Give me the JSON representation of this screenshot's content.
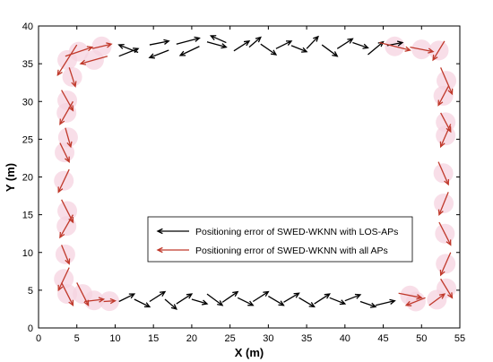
{
  "chart_data": {
    "type": "quiver",
    "xlabel": "X (m)",
    "ylabel": "Y (m)",
    "xlim": [
      0,
      55
    ],
    "ylim": [
      0,
      40
    ],
    "xticks": [
      "0",
      "5",
      "10",
      "15",
      "20",
      "25",
      "30",
      "35",
      "40",
      "45",
      "50",
      "55"
    ],
    "yticks": [
      "0",
      "5",
      "10",
      "15",
      "20",
      "25",
      "30",
      "35",
      "40"
    ],
    "grid": false,
    "legend": {
      "placement": "inside-lower-center",
      "entries": [
        "Positioning error of SWED-WKNN with LOS-APs",
        "Positioning error of SWED-WKNN with all APs"
      ]
    },
    "series": [
      {
        "name": "Positioning error of SWED-WKNN with LOS-APs",
        "color": "#000000",
        "arrows": [
          [
            [
              10.5,
              36.0
            ],
            [
              13.0,
              37.0
            ]
          ],
          [
            [
              13.0,
              36.5
            ],
            [
              10.5,
              37.5
            ]
          ],
          [
            [
              14.5,
              37.5
            ],
            [
              17.0,
              38.0
            ]
          ],
          [
            [
              17.0,
              36.8
            ],
            [
              14.5,
              35.8
            ]
          ],
          [
            [
              18.0,
              37.6
            ],
            [
              21.0,
              38.4
            ]
          ],
          [
            [
              21.0,
              37.3
            ],
            [
              18.5,
              36.1
            ]
          ],
          [
            [
              22.0,
              37.9
            ],
            [
              24.5,
              37.2
            ]
          ],
          [
            [
              24.5,
              37.8
            ],
            [
              22.5,
              38.7
            ]
          ],
          [
            [
              25.5,
              36.7
            ],
            [
              27.5,
              38.0
            ]
          ],
          [
            [
              27.5,
              37.2
            ],
            [
              29.0,
              38.5
            ]
          ],
          [
            [
              29.0,
              37.6
            ],
            [
              31.0,
              36.2
            ]
          ],
          [
            [
              31.0,
              37.0
            ],
            [
              33.0,
              38.0
            ]
          ],
          [
            [
              33.0,
              37.4
            ],
            [
              35.0,
              36.6
            ]
          ],
          [
            [
              35.0,
              37.0
            ],
            [
              36.5,
              38.6
            ]
          ],
          [
            [
              37.0,
              37.5
            ],
            [
              39.0,
              36.0
            ]
          ],
          [
            [
              39.0,
              37.0
            ],
            [
              41.0,
              38.3
            ]
          ],
          [
            [
              41.0,
              37.8
            ],
            [
              43.0,
              37.1
            ]
          ],
          [
            [
              43.0,
              36.2
            ],
            [
              45.0,
              37.9
            ]
          ],
          [
            [
              45.5,
              37.4
            ],
            [
              47.5,
              37.8
            ]
          ],
          [
            [
              10.5,
              3.5
            ],
            [
              12.5,
              4.5
            ]
          ],
          [
            [
              12.5,
              3.8
            ],
            [
              14.5,
              2.8
            ]
          ],
          [
            [
              14.5,
              3.5
            ],
            [
              16.5,
              4.8
            ]
          ],
          [
            [
              16.5,
              3.8
            ],
            [
              18.0,
              2.5
            ]
          ],
          [
            [
              18.0,
              3.2
            ],
            [
              20.0,
              4.5
            ]
          ],
          [
            [
              20.0,
              3.8
            ],
            [
              22.0,
              3.2
            ]
          ],
          [
            [
              22.0,
              4.5
            ],
            [
              24.0,
              3.0
            ]
          ],
          [
            [
              24.0,
              3.4
            ],
            [
              26.0,
              4.8
            ]
          ],
          [
            [
              26.0,
              4.0
            ],
            [
              28.0,
              3.0
            ]
          ],
          [
            [
              28.0,
              3.5
            ],
            [
              30.0,
              4.8
            ]
          ],
          [
            [
              30.0,
              4.2
            ],
            [
              32.0,
              3.0
            ]
          ],
          [
            [
              32.0,
              3.4
            ],
            [
              34.0,
              4.6
            ]
          ],
          [
            [
              34.0,
              4.0
            ],
            [
              36.0,
              2.8
            ]
          ],
          [
            [
              36.0,
              3.2
            ],
            [
              38.0,
              4.5
            ]
          ],
          [
            [
              38.0,
              4.0
            ],
            [
              40.0,
              3.2
            ]
          ],
          [
            [
              40.0,
              3.6
            ],
            [
              42.0,
              4.4
            ]
          ],
          [
            [
              42.0,
              3.5
            ],
            [
              44.0,
              2.8
            ]
          ],
          [
            [
              44.0,
              3.0
            ],
            [
              46.5,
              3.6
            ]
          ]
        ]
      },
      {
        "name": "Positioning error of SWED-WKNN with all APs",
        "color": "#c0392b",
        "arrows": [
          [
            [
              3.5,
              36.0
            ],
            [
              7.0,
              37.2
            ]
          ],
          [
            [
              7.0,
              37.0
            ],
            [
              9.5,
              37.6
            ]
          ],
          [
            [
              9.0,
              36.0
            ],
            [
              5.5,
              35.0
            ]
          ],
          [
            [
              5.0,
              37.5
            ],
            [
              2.5,
              33.5
            ]
          ],
          [
            [
              4.0,
              34.5
            ],
            [
              4.8,
              32.0
            ]
          ],
          [
            [
              3.0,
              31.5
            ],
            [
              4.5,
              28.8
            ]
          ],
          [
            [
              4.5,
              30.0
            ],
            [
              2.8,
              27.0
            ]
          ],
          [
            [
              3.5,
              26.5
            ],
            [
              4.2,
              24.0
            ]
          ],
          [
            [
              2.8,
              24.5
            ],
            [
              4.0,
              22.0
            ]
          ],
          [
            [
              4.0,
              21.0
            ],
            [
              2.6,
              18.0
            ]
          ],
          [
            [
              3.0,
              17.0
            ],
            [
              4.5,
              14.0
            ]
          ],
          [
            [
              4.5,
              15.0
            ],
            [
              2.8,
              12.0
            ]
          ],
          [
            [
              3.0,
              11.0
            ],
            [
              4.0,
              8.5
            ]
          ],
          [
            [
              4.0,
              8.0
            ],
            [
              2.6,
              5.0
            ]
          ],
          [
            [
              3.0,
              6.0
            ],
            [
              4.5,
              3.0
            ]
          ],
          [
            [
              5.0,
              6.0
            ],
            [
              6.5,
              3.0
            ]
          ],
          [
            [
              6.0,
              3.5
            ],
            [
              8.5,
              3.8
            ]
          ],
          [
            [
              8.5,
              3.5
            ],
            [
              10.0,
              3.6
            ]
          ],
          [
            [
              44.5,
              37.8
            ],
            [
              48.5,
              36.8
            ]
          ],
          [
            [
              48.5,
              37.2
            ],
            [
              51.5,
              36.6
            ]
          ],
          [
            [
              53.0,
              38.0
            ],
            [
              51.5,
              35.5
            ]
          ],
          [
            [
              52.5,
              34.5
            ],
            [
              54.0,
              31.0
            ]
          ],
          [
            [
              53.5,
              32.0
            ],
            [
              52.2,
              29.5
            ]
          ],
          [
            [
              52.5,
              28.5
            ],
            [
              53.8,
              26.0
            ]
          ],
          [
            [
              53.8,
              27.0
            ],
            [
              52.5,
              24.0
            ]
          ],
          [
            [
              52.2,
              22.0
            ],
            [
              53.5,
              19.0
            ]
          ],
          [
            [
              53.5,
              18.0
            ],
            [
              52.3,
              15.0
            ]
          ],
          [
            [
              52.3,
              14.0
            ],
            [
              53.8,
              11.0
            ]
          ],
          [
            [
              53.8,
              10.0
            ],
            [
              52.5,
              7.0
            ]
          ],
          [
            [
              52.5,
              6.5
            ],
            [
              54.0,
              4.0
            ]
          ],
          [
            [
              47.0,
              4.6
            ],
            [
              50.0,
              4.0
            ]
          ],
          [
            [
              50.5,
              4.0
            ],
            [
              48.0,
              3.0
            ]
          ],
          [
            [
              51.0,
              3.0
            ],
            [
              53.0,
              4.5
            ]
          ]
        ]
      }
    ]
  }
}
